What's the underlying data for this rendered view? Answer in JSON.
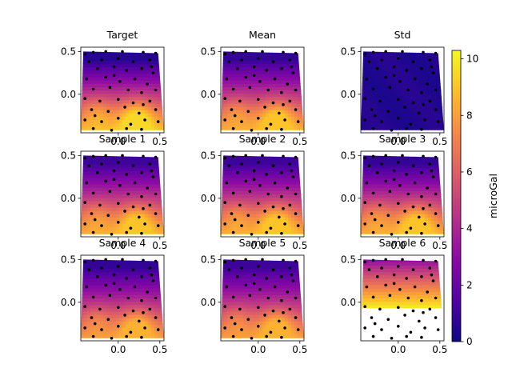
{
  "colorbar": {
    "label": "microGal",
    "ticks": [
      0,
      2,
      4,
      6,
      8,
      10
    ],
    "vmin": 0,
    "vmax": 10.3,
    "colormap": "plasma",
    "colors": [
      "#0d0887",
      "#5302a3",
      "#8b0aa5",
      "#b83289",
      "#db5c68",
      "#f48849",
      "#febd2a",
      "#f0f921"
    ]
  },
  "chart_data": [
    {
      "type": "heatmap",
      "title": "Target",
      "xlim": [
        -0.45,
        0.55
      ],
      "ylim": [
        -0.45,
        0.55
      ],
      "xticks": [
        0.0,
        0.5
      ],
      "xtick_labels": [
        "0.0",
        "0.5"
      ],
      "yticks": [
        0.0,
        0.5
      ],
      "ytick_labels": [
        "0.0",
        "0.5"
      ],
      "field": "plasma_high_bottom",
      "peak_value": 9.5,
      "min_value": 0.5
    },
    {
      "type": "heatmap",
      "title": "Mean",
      "xlim": [
        -0.45,
        0.55
      ],
      "ylim": [
        -0.45,
        0.55
      ],
      "xticks": [
        0.0,
        0.5
      ],
      "xtick_labels": [
        "0.0",
        "0.5"
      ],
      "yticks": [
        0.0,
        0.5
      ],
      "ytick_labels": [
        "0.0",
        "0.5"
      ],
      "field": "plasma_high_bottom",
      "peak_value": 9.0,
      "min_value": 0.8
    },
    {
      "type": "heatmap",
      "title": "Std",
      "xlim": [
        -0.45,
        0.55
      ],
      "ylim": [
        -0.45,
        0.55
      ],
      "xticks": [
        0.0,
        0.5
      ],
      "xtick_labels": [
        "0.0",
        "0.5"
      ],
      "yticks": [
        0.0,
        0.5
      ],
      "ytick_labels": [
        "0.0",
        "0.5"
      ],
      "field": "uniform_low",
      "peak_value": 0.6,
      "min_value": 0.3
    },
    {
      "type": "heatmap",
      "title": "Sample 1",
      "xlim": [
        -0.45,
        0.55
      ],
      "ylim": [
        -0.45,
        0.55
      ],
      "xticks": [
        0.0,
        0.5
      ],
      "xtick_labels": [
        "0.0",
        "0.5"
      ],
      "yticks": [
        0.0,
        0.5
      ],
      "ytick_labels": [
        "0.0",
        "0.5"
      ],
      "field": "plasma_high_bottom",
      "peak_value": 9.0,
      "min_value": 1.0
    },
    {
      "type": "heatmap",
      "title": "Sample 2",
      "xlim": [
        -0.45,
        0.55
      ],
      "ylim": [
        -0.45,
        0.55
      ],
      "xticks": [
        0.0,
        0.5
      ],
      "xtick_labels": [
        "0.0",
        "0.5"
      ],
      "yticks": [
        0.0,
        0.5
      ],
      "ytick_labels": [
        "0.0",
        "0.5"
      ],
      "field": "plasma_high_bottom",
      "peak_value": 9.0,
      "min_value": 1.0
    },
    {
      "type": "heatmap",
      "title": "Sample 3",
      "xlim": [
        -0.45,
        0.55
      ],
      "ylim": [
        -0.45,
        0.55
      ],
      "xticks": [
        0.0,
        0.5
      ],
      "xtick_labels": [
        "0.0",
        "0.5"
      ],
      "yticks": [
        0.0,
        0.5
      ],
      "ytick_labels": [
        "0.0",
        "0.5"
      ],
      "field": "plasma_high_bottom",
      "peak_value": 9.0,
      "min_value": 0.8
    },
    {
      "type": "heatmap",
      "title": "Sample 4",
      "xlim": [
        -0.45,
        0.55
      ],
      "ylim": [
        -0.45,
        0.55
      ],
      "xticks": [
        0.0,
        0.5
      ],
      "xtick_labels": [
        "0.0",
        "0.5"
      ],
      "yticks": [
        0.0,
        0.5
      ],
      "ytick_labels": [
        "0.0",
        "0.5"
      ],
      "field": "plasma_high_bottom",
      "peak_value": 8.5,
      "min_value": 0.8
    },
    {
      "type": "heatmap",
      "title": "Sample 5",
      "xlim": [
        -0.45,
        0.55
      ],
      "ylim": [
        -0.45,
        0.55
      ],
      "xticks": [
        0.0,
        0.5
      ],
      "xtick_labels": [
        "0.0",
        "0.5"
      ],
      "yticks": [
        0.0,
        0.5
      ],
      "ytick_labels": [
        "0.0",
        "0.5"
      ],
      "field": "plasma_high_bottom",
      "peak_value": 8.5,
      "min_value": 1.0
    },
    {
      "type": "heatmap",
      "title": "Sample 6",
      "xlim": [
        -0.45,
        0.55
      ],
      "ylim": [
        -0.45,
        0.55
      ],
      "xticks": [
        0.0,
        0.5
      ],
      "xtick_labels": [
        "0.0",
        "0.5"
      ],
      "yticks": [
        0.0,
        0.5
      ],
      "ytick_labels": [
        "0.0",
        "0.5"
      ],
      "field": "saturated_high",
      "peak_value": 10.3,
      "min_value": 3.0
    }
  ],
  "stations": [
    [
      -0.4,
      0.47
    ],
    [
      -0.3,
      0.49
    ],
    [
      -0.15,
      0.5
    ],
    [
      0.05,
      0.5
    ],
    [
      0.3,
      0.49
    ],
    [
      0.45,
      0.48
    ],
    [
      -0.35,
      0.38
    ],
    [
      -0.2,
      0.4
    ],
    [
      0.0,
      0.42
    ],
    [
      0.18,
      0.38
    ],
    [
      0.38,
      0.4
    ],
    [
      -0.25,
      0.3
    ],
    [
      -0.05,
      0.32
    ],
    [
      0.1,
      0.28
    ],
    [
      0.28,
      0.3
    ],
    [
      0.42,
      0.25
    ],
    [
      -0.38,
      0.18
    ],
    [
      -0.15,
      0.2
    ],
    [
      0.02,
      0.15
    ],
    [
      0.2,
      0.18
    ],
    [
      0.35,
      0.12
    ],
    [
      -0.3,
      0.06
    ],
    [
      -0.1,
      0.08
    ],
    [
      0.12,
      0.05
    ],
    [
      0.28,
      0.02
    ],
    [
      0.45,
      0.05
    ],
    [
      -0.4,
      -0.05
    ],
    [
      -0.22,
      -0.08
    ],
    [
      0.0,
      -0.06
    ],
    [
      0.18,
      -0.1
    ],
    [
      0.38,
      -0.08
    ],
    [
      -0.32,
      -0.18
    ],
    [
      -0.12,
      -0.2
    ],
    [
      0.08,
      -0.15
    ],
    [
      0.25,
      -0.22
    ],
    [
      0.45,
      -0.18
    ],
    [
      -0.4,
      -0.3
    ],
    [
      -0.2,
      -0.32
    ],
    [
      0.0,
      -0.28
    ],
    [
      0.15,
      -0.35
    ],
    [
      0.32,
      -0.3
    ],
    [
      0.48,
      -0.32
    ],
    [
      -0.3,
      -0.4
    ],
    [
      -0.08,
      -0.42
    ],
    [
      0.1,
      -0.4
    ],
    [
      0.28,
      -0.41
    ],
    [
      -0.05,
      0.22
    ],
    [
      0.3,
      -0.12
    ],
    [
      -0.28,
      -0.25
    ],
    [
      0.4,
      0.32
    ]
  ]
}
